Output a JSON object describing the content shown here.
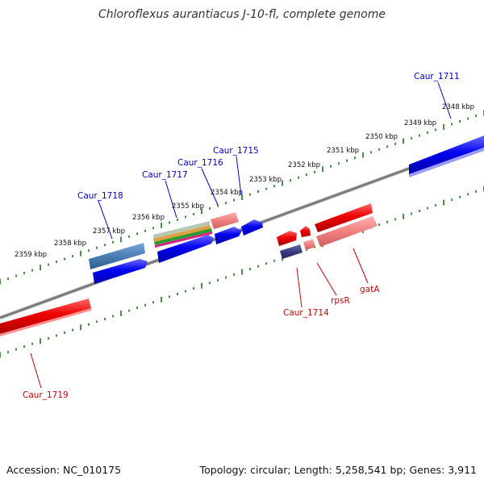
{
  "title": "Chloroflexus aurantiacus J-10-fl, complete genome",
  "accession": "Accession: NC_010175",
  "summary": "Topology: circular; Length: 5,258,541 bp; Genes: 3,911",
  "colors": {
    "backbone": "#808080",
    "ruler_ticks": "#1a7a1a",
    "forward_label": "#0000cc",
    "reverse_label": "#cc0000"
  },
  "ruler_labels": [
    "2348 kbp",
    "2349 kbp",
    "2350 kbp",
    "2351 kbp",
    "2352 kbp",
    "2353 kbp",
    "2354 kbp",
    "2355 kbp",
    "2356 kbp",
    "2357 kbp",
    "2358 kbp",
    "2359 kbp"
  ],
  "gene_labels": {
    "caur_1711": "Caur_1711",
    "caur_1715": "Caur_1715",
    "caur_1716": "Caur_1716",
    "caur_1717": "Caur_1717",
    "caur_1718": "Caur_1718",
    "caur_1714": "Caur_1714",
    "rpsR": "rpsR",
    "gatA": "gatA",
    "caur_1719": "Caur_1719"
  }
}
